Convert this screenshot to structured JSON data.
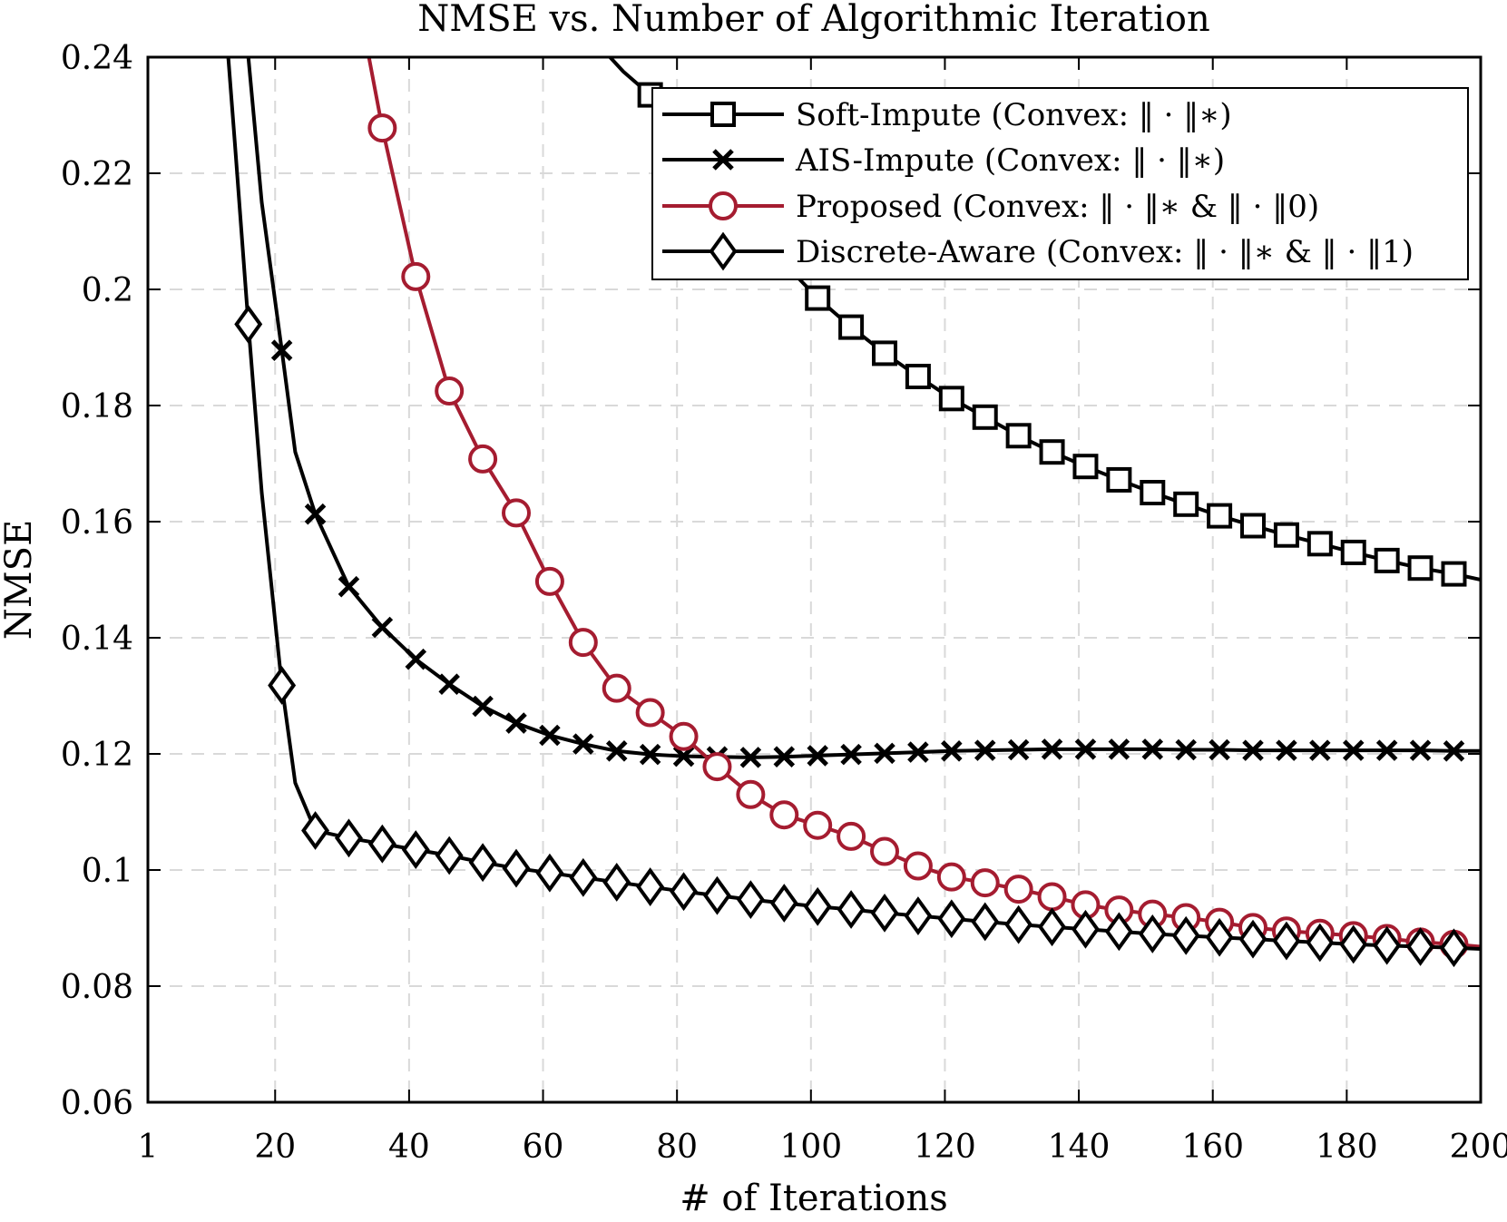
{
  "chart_data": {
    "type": "line",
    "title": "NMSE vs. Number of Algorithmic Iteration",
    "xlabel": "# of Iterations",
    "ylabel": "NMSE",
    "xlim": [
      1,
      200
    ],
    "ylim": [
      0.06,
      0.24
    ],
    "xticks": [
      1,
      20,
      40,
      60,
      80,
      100,
      120,
      140,
      160,
      180,
      200
    ],
    "xtick_labels": [
      "1",
      "20",
      "40",
      "60",
      "80",
      "100",
      "120",
      "140",
      "160",
      "180",
      "200"
    ],
    "yticks": [
      0.06,
      0.08,
      0.1,
      0.12,
      0.14,
      0.16,
      0.18,
      0.2,
      0.22,
      0.24
    ],
    "ytick_labels": [
      "0.06",
      "0.08",
      "0.1",
      "0.12",
      "0.14",
      "0.16",
      "0.18",
      "0.2",
      "0.22",
      "0.24"
    ],
    "grid": true,
    "legend_position": "top-right",
    "series": [
      {
        "name": "Soft-Impute (Convex: ‖ · ‖∗)",
        "color": "#000000",
        "marker": "square",
        "line_x": [
          70,
          72,
          76,
          81,
          86,
          91,
          96,
          101,
          106,
          111,
          116,
          121,
          126,
          131,
          136,
          141,
          146,
          151,
          156,
          161,
          166,
          171,
          176,
          181,
          186,
          191,
          196,
          200
        ],
        "line_y": [
          0.24,
          0.2375,
          0.2335,
          0.227,
          0.2185,
          0.2125,
          0.2045,
          0.1985,
          0.1935,
          0.189,
          0.185,
          0.1812,
          0.178,
          0.1748,
          0.172,
          0.1695,
          0.1672,
          0.165,
          0.163,
          0.161,
          0.1593,
          0.1577,
          0.1562,
          0.1547,
          0.1533,
          0.152,
          0.151,
          0.15
        ],
        "marker_x": [
          76,
          101,
          106,
          111,
          116,
          121,
          126,
          131,
          136,
          141,
          146,
          151,
          156,
          161,
          166,
          171,
          176,
          181,
          186,
          191,
          196
        ],
        "marker_y": [
          0.2335,
          0.1985,
          0.1935,
          0.189,
          0.185,
          0.1812,
          0.178,
          0.1748,
          0.172,
          0.1695,
          0.1672,
          0.165,
          0.163,
          0.161,
          0.1593,
          0.1577,
          0.1562,
          0.1547,
          0.1533,
          0.152,
          0.151
        ]
      },
      {
        "name": "AIS-Impute (Convex: ‖ · ‖∗)",
        "color": "#000000",
        "marker": "x",
        "line_x": [
          16,
          18,
          21,
          23,
          26,
          31,
          36,
          41,
          46,
          51,
          56,
          61,
          66,
          71,
          76,
          81,
          86,
          91,
          96,
          101,
          106,
          111,
          116,
          121,
          126,
          131,
          136,
          141,
          146,
          151,
          156,
          161,
          166,
          171,
          176,
          181,
          186,
          191,
          196,
          200
        ],
        "line_y": [
          0.24,
          0.215,
          0.1895,
          0.172,
          0.1613,
          0.1488,
          0.1418,
          0.1363,
          0.132,
          0.1282,
          0.1253,
          0.1232,
          0.1217,
          0.1205,
          0.1199,
          0.1196,
          0.1195,
          0.1194,
          0.1195,
          0.1197,
          0.1199,
          0.1201,
          0.1203,
          0.1205,
          0.1206,
          0.1207,
          0.1208,
          0.1208,
          0.1208,
          0.1208,
          0.1207,
          0.1207,
          0.1206,
          0.1206,
          0.1206,
          0.1206,
          0.1206,
          0.1206,
          0.1205,
          0.1205
        ],
        "marker_x": [
          21,
          26,
          31,
          36,
          41,
          46,
          51,
          56,
          61,
          66,
          71,
          76,
          81,
          86,
          91,
          96,
          101,
          106,
          111,
          116,
          121,
          126,
          131,
          136,
          141,
          146,
          151,
          156,
          161,
          166,
          171,
          176,
          181,
          186,
          191,
          196
        ],
        "marker_y": [
          0.1895,
          0.1613,
          0.1488,
          0.1418,
          0.1363,
          0.132,
          0.1282,
          0.1253,
          0.1232,
          0.1217,
          0.1205,
          0.1199,
          0.1196,
          0.1195,
          0.1194,
          0.1195,
          0.1197,
          0.1199,
          0.1201,
          0.1203,
          0.1205,
          0.1206,
          0.1207,
          0.1208,
          0.1208,
          0.1208,
          0.1208,
          0.1207,
          0.1207,
          0.1206,
          0.1206,
          0.1206,
          0.1206,
          0.1206,
          0.1206,
          0.1205
        ]
      },
      {
        "name": "Proposed (Convex: ‖ · ‖∗ & ‖ · ‖0)",
        "color": "#a51c30",
        "marker": "circle",
        "line_x": [
          34,
          36,
          41,
          46,
          51,
          56,
          61,
          66,
          71,
          76,
          81,
          86,
          91,
          96,
          101,
          106,
          111,
          116,
          121,
          126,
          131,
          136,
          141,
          146,
          151,
          156,
          161,
          166,
          171,
          176,
          181,
          186,
          191,
          196,
          200
        ],
        "line_y": [
          0.24,
          0.2278,
          0.2022,
          0.1825,
          0.1708,
          0.1615,
          0.1497,
          0.1392,
          0.1313,
          0.1271,
          0.123,
          0.1178,
          0.113,
          0.1095,
          0.1077,
          0.1058,
          0.1032,
          0.1007,
          0.0988,
          0.0978,
          0.0967,
          0.0954,
          0.094,
          0.0931,
          0.0924,
          0.0918,
          0.091,
          0.0901,
          0.0895,
          0.0891,
          0.0887,
          0.0882,
          0.0876,
          0.0872,
          0.0868
        ],
        "marker_x": [
          36,
          41,
          46,
          51,
          56,
          61,
          66,
          71,
          76,
          81,
          86,
          91,
          96,
          101,
          106,
          111,
          116,
          121,
          126,
          131,
          136,
          141,
          146,
          151,
          156,
          161,
          166,
          171,
          176,
          181,
          186,
          191,
          196
        ],
        "marker_y": [
          0.2278,
          0.2022,
          0.1825,
          0.1708,
          0.1615,
          0.1497,
          0.1392,
          0.1313,
          0.1271,
          0.123,
          0.1178,
          0.113,
          0.1095,
          0.1077,
          0.1058,
          0.1032,
          0.1007,
          0.0988,
          0.0978,
          0.0967,
          0.0954,
          0.094,
          0.0931,
          0.0924,
          0.0918,
          0.091,
          0.0901,
          0.0895,
          0.0891,
          0.0887,
          0.0882,
          0.0876,
          0.0872
        ]
      },
      {
        "name": "Discrete-Aware (Convex: ‖ · ‖∗ & ‖ · ‖1)",
        "color": "#000000",
        "marker": "diamond",
        "line_x": [
          13,
          14,
          16,
          18,
          21,
          23,
          26,
          31,
          36,
          41,
          46,
          51,
          56,
          61,
          66,
          71,
          76,
          81,
          86,
          91,
          96,
          101,
          106,
          111,
          116,
          121,
          126,
          131,
          136,
          141,
          146,
          151,
          156,
          161,
          166,
          171,
          176,
          181,
          186,
          191,
          196,
          200
        ],
        "line_y": [
          0.24,
          0.225,
          0.194,
          0.165,
          0.1318,
          0.115,
          0.1068,
          0.1055,
          0.1045,
          0.1035,
          0.1025,
          0.1013,
          0.1003,
          0.0995,
          0.0987,
          0.0979,
          0.0971,
          0.0963,
          0.0956,
          0.0949,
          0.0943,
          0.0937,
          0.0932,
          0.0926,
          0.0921,
          0.0916,
          0.0911,
          0.0906,
          0.0902,
          0.0898,
          0.0894,
          0.089,
          0.0887,
          0.0884,
          0.0881,
          0.0878,
          0.0875,
          0.0872,
          0.087,
          0.0868,
          0.0866,
          0.0864
        ],
        "marker_x": [
          16,
          21,
          26,
          31,
          36,
          41,
          46,
          51,
          56,
          61,
          66,
          71,
          76,
          81,
          86,
          91,
          96,
          101,
          106,
          111,
          116,
          121,
          126,
          131,
          136,
          141,
          146,
          151,
          156,
          161,
          166,
          171,
          176,
          181,
          186,
          191,
          196
        ],
        "marker_y": [
          0.194,
          0.1318,
          0.1068,
          0.1055,
          0.1045,
          0.1035,
          0.1025,
          0.1013,
          0.1003,
          0.0995,
          0.0987,
          0.0979,
          0.0971,
          0.0963,
          0.0956,
          0.0949,
          0.0943,
          0.0937,
          0.0932,
          0.0926,
          0.0921,
          0.0916,
          0.0911,
          0.0906,
          0.0902,
          0.0898,
          0.0894,
          0.089,
          0.0887,
          0.0884,
          0.0881,
          0.0878,
          0.0875,
          0.0872,
          0.087,
          0.0868,
          0.0866
        ]
      }
    ]
  }
}
